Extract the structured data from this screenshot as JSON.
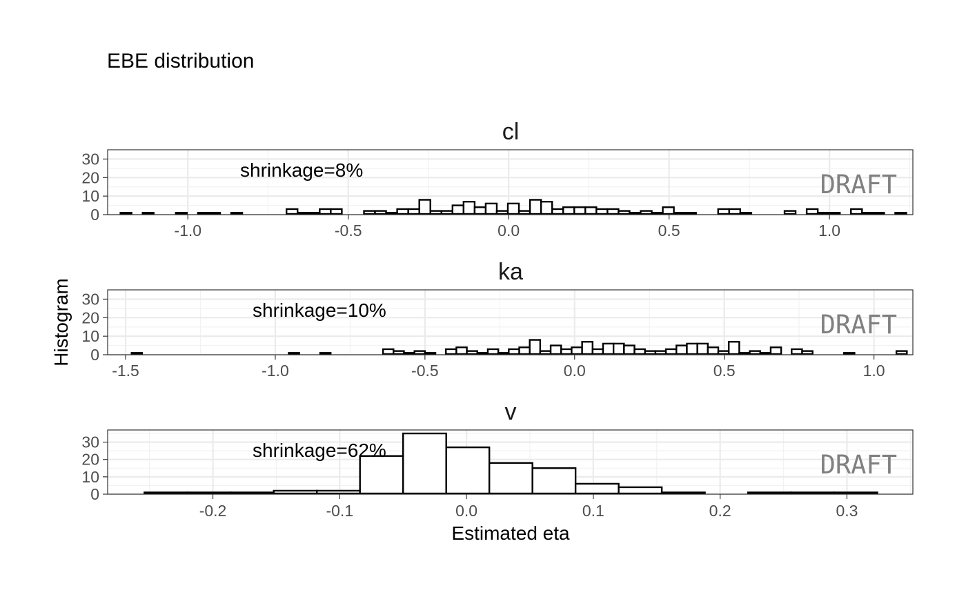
{
  "chart_data": {
    "type": "bar",
    "title": "EBE distribution",
    "ylabel": "Histogram",
    "xlabel": "Estimated eta",
    "watermark": "DRAFT",
    "grid": true,
    "panels": [
      {
        "name": "cl",
        "annotation": "shrinkage=8%",
        "xlim": [
          -1.25,
          1.26
        ],
        "ylim": [
          0,
          35
        ],
        "xticks": [
          -1.0,
          -0.5,
          0.0,
          0.5,
          1.0
        ],
        "xtick_labels": [
          "-1.0",
          "-0.5",
          "0.0",
          "0.5",
          "1.0"
        ],
        "yticks": [
          0,
          10,
          20,
          30
        ],
        "ytick_labels": [
          "0",
          "10",
          "20",
          "30"
        ],
        "bin_start": -1.21,
        "bin_width": 0.0345,
        "counts": [
          1,
          0,
          1,
          0,
          0,
          1,
          0,
          1,
          1,
          0,
          1,
          0,
          0,
          0,
          0,
          3,
          1,
          1,
          3,
          3,
          0,
          0,
          2,
          2,
          1,
          3,
          3,
          8,
          2,
          2,
          5,
          7,
          4,
          6,
          2,
          6,
          2,
          8,
          7,
          3,
          4,
          4,
          4,
          3,
          3,
          2,
          1,
          2,
          1,
          4,
          1,
          1,
          0,
          0,
          3,
          3,
          1,
          0,
          0,
          0,
          2,
          0,
          3,
          1,
          1,
          0,
          3,
          1,
          1,
          0,
          1
        ]
      },
      {
        "name": "ka",
        "annotation": "shrinkage=10%",
        "xlim": [
          -1.56,
          1.13
        ],
        "ylim": [
          0,
          35
        ],
        "xticks": [
          -1.5,
          -1.0,
          -0.5,
          0.0,
          0.5,
          1.0
        ],
        "xtick_labels": [
          "-1.5",
          "-1.0",
          "-0.5",
          "0.0",
          "0.5",
          "1.0"
        ],
        "yticks": [
          0,
          10,
          20,
          30
        ],
        "ytick_labels": [
          "0",
          "10",
          "20",
          "30"
        ],
        "bin_start": -1.48,
        "bin_width": 0.035,
        "counts": [
          1,
          0,
          0,
          0,
          0,
          0,
          0,
          0,
          0,
          0,
          0,
          0,
          0,
          0,
          0,
          1,
          0,
          0,
          1,
          0,
          0,
          0,
          0,
          0,
          3,
          2,
          1,
          2,
          1,
          0,
          3,
          4,
          2,
          1,
          3,
          1,
          3,
          4,
          8,
          2,
          5,
          3,
          4,
          7,
          3,
          6,
          6,
          5,
          3,
          2,
          2,
          3,
          5,
          6,
          6,
          4,
          2,
          7,
          1,
          2,
          1,
          4,
          0,
          3,
          2,
          0,
          0,
          0,
          1,
          0,
          0,
          0,
          0,
          2
        ]
      },
      {
        "name": "v",
        "annotation": "shrinkage=62%",
        "xlim": [
          -0.283,
          0.352
        ],
        "ylim": [
          0,
          37
        ],
        "xticks": [
          -0.2,
          -0.1,
          0.0,
          0.1,
          0.2,
          0.3
        ],
        "xtick_labels": [
          "-0.2",
          "-0.1",
          "0.0",
          "0.1",
          "0.2",
          "0.3"
        ],
        "yticks": [
          0,
          10,
          20,
          30
        ],
        "ytick_labels": [
          "0",
          "10",
          "20",
          "30"
        ],
        "bin_start": -0.254,
        "bin_width": 0.034,
        "counts": [
          1,
          1,
          1,
          2,
          2,
          22,
          35,
          27,
          18,
          15,
          6,
          4,
          1,
          0,
          1,
          1,
          1
        ]
      }
    ]
  }
}
